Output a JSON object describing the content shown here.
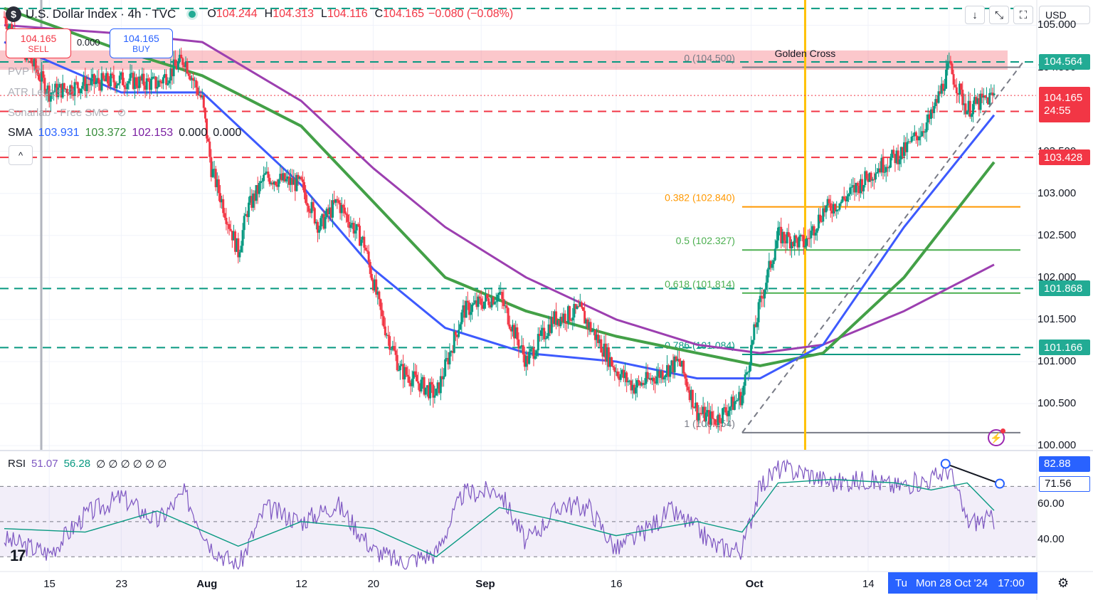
{
  "header": {
    "title": "U.S. Dollar Index · 4h · TVC",
    "logo_glyph": "$",
    "ohlc": [
      {
        "key": "O",
        "value": "104.244"
      },
      {
        "key": "H",
        "value": "104.313"
      },
      {
        "key": "L",
        "value": "104.116"
      },
      {
        "key": "C",
        "value": "104.165"
      }
    ],
    "change": "−0.080 (−0.08%)"
  },
  "toolbar": {
    "down_icon": "↓",
    "collapse_icon": "⤡",
    "fullscreen_icon": "⛶",
    "currency": "USD"
  },
  "trade": {
    "sell_price": "104.165",
    "sell_label": "SELL",
    "buy_price": "104.165",
    "buy_label": "BUY",
    "spread": "0.000"
  },
  "indicators": {
    "pvp": "PVP",
    "atr": "ATR Levels",
    "smc": "Sonarlab - Free SMC",
    "sma_label": "SMA",
    "sma_values": [
      {
        "v": "103.931",
        "color": "#2962ff"
      },
      {
        "v": "103.372",
        "color": "#388e3c"
      },
      {
        "v": "102.153",
        "color": "#7b1fa2"
      },
      {
        "v": "0.000",
        "color": "#131722"
      },
      {
        "v": "0.000",
        "color": "#131722"
      }
    ],
    "collapse_glyph": "^"
  },
  "price_axis": {
    "labels": [
      {
        "value": 105.0,
        "text": "105.000"
      },
      {
        "value": 104.5,
        "text": "104.500"
      },
      {
        "value": 103.5,
        "text": "103.500"
      },
      {
        "value": 103.0,
        "text": "103.000"
      },
      {
        "value": 102.5,
        "text": "102.500"
      },
      {
        "value": 102.0,
        "text": "102.000"
      },
      {
        "value": 101.5,
        "text": "101.500"
      },
      {
        "value": 101.0,
        "text": "101.000"
      },
      {
        "value": 100.5,
        "text": "100.500"
      },
      {
        "value": 100.0,
        "text": "100.000"
      }
    ],
    "tags": [
      {
        "value": 104.564,
        "text": "104.564",
        "color": "#22ab94"
      },
      {
        "value": 103.975,
        "text": "103.975",
        "color": "#f23645"
      },
      {
        "value": 103.428,
        "text": "103.428",
        "color": "#f23645"
      },
      {
        "value": 101.868,
        "text": "101.868",
        "color": "#22ab94"
      },
      {
        "value": 101.166,
        "text": "101.166",
        "color": "#22ab94"
      }
    ],
    "current": {
      "value": 104.165,
      "text": "104.165",
      "countdown": "24:55",
      "color": "#f23645"
    }
  },
  "rsi": {
    "label": "RSI",
    "value": "51.07",
    "ma_value": "56.28",
    "empty_glyph": "∅",
    "axis_labels": [
      {
        "value": 60,
        "text": "60.00"
      },
      {
        "value": 40,
        "text": "40.00"
      }
    ],
    "tags": [
      {
        "value": 82.88,
        "text": "82.88",
        "color": "#2962ff",
        "fill": true
      },
      {
        "value": 71.56,
        "text": "71.56",
        "color": "#2962ff",
        "fill": false
      }
    ]
  },
  "time_axis": {
    "labels": [
      {
        "text": "15",
        "bold": false
      },
      {
        "text": "23",
        "bold": false
      },
      {
        "text": "Aug",
        "bold": true
      },
      {
        "text": "12",
        "bold": false
      },
      {
        "text": "20",
        "bold": false
      },
      {
        "text": "Sep",
        "bold": true
      },
      {
        "text": "16",
        "bold": false
      },
      {
        "text": "Oct",
        "bold": true
      },
      {
        "text": "14",
        "bold": false
      }
    ],
    "current": {
      "prefix": "Tu",
      "date": "Mon 28 Oct '24",
      "time": "17:00"
    }
  },
  "chart_data": {
    "type": "candlestick",
    "symbol": "U.S. Dollar Index",
    "timeframe": "4h",
    "source": "TVC",
    "price_range": [
      99.95,
      105.3
    ],
    "close_path": [
      [
        "Jul 10",
        105.1
      ],
      [
        "Jul 15",
        104.2
      ],
      [
        "Jul 19",
        104.3
      ],
      [
        "Jul 23",
        104.35
      ],
      [
        "Jul 27",
        104.3
      ],
      [
        "Jul 30",
        104.6
      ],
      [
        "Aug 1",
        104.1
      ],
      [
        "Aug 2",
        103.3
      ],
      [
        "Aug 5",
        102.3
      ],
      [
        "Aug 6",
        102.8
      ],
      [
        "Aug 8",
        103.2
      ],
      [
        "Aug 12",
        103.1
      ],
      [
        "Aug 14",
        102.6
      ],
      [
        "Aug 16",
        102.9
      ],
      [
        "Aug 19",
        102.4
      ],
      [
        "Aug 21",
        101.5
      ],
      [
        "Aug 23",
        100.9
      ],
      [
        "Aug 27",
        100.6
      ],
      [
        "Aug 30",
        101.6
      ],
      [
        "Sep 3",
        101.8
      ],
      [
        "Sep 6",
        101.0
      ],
      [
        "Sep 9",
        101.5
      ],
      [
        "Sep 12",
        101.6
      ],
      [
        "Sep 16",
        100.9
      ],
      [
        "Sep 18",
        100.7
      ],
      [
        "Sep 20",
        100.8
      ],
      [
        "Sep 23",
        101.0
      ],
      [
        "Sep 25",
        100.4
      ],
      [
        "Sep 27",
        100.3
      ],
      [
        "Sep 30",
        100.6
      ],
      [
        "Oct 2",
        101.7
      ],
      [
        "Oct 4",
        102.5
      ],
      [
        "Oct 7",
        102.4
      ],
      [
        "Oct 9",
        102.8
      ],
      [
        "Oct 11",
        102.9
      ],
      [
        "Oct 15",
        103.3
      ],
      [
        "Oct 18",
        103.5
      ],
      [
        "Oct 21",
        103.9
      ],
      [
        "Oct 23",
        104.5
      ],
      [
        "Oct 25",
        104.0
      ],
      [
        "Oct 28",
        104.165
      ]
    ],
    "sma_50_path": [
      [
        "Jul 10",
        104.8
      ],
      [
        "Jul 23",
        104.2
      ],
      [
        "Aug 1",
        104.2
      ],
      [
        "Aug 12",
        103.1
      ],
      [
        "Aug 20",
        102.1
      ],
      [
        "Aug 28",
        101.4
      ],
      [
        "Sep 6",
        101.1
      ],
      [
        "Sep 16",
        101.0
      ],
      [
        "Sep 25",
        100.8
      ],
      [
        "Oct 2",
        100.8
      ],
      [
        "Oct 9",
        101.2
      ],
      [
        "Oct 18",
        102.6
      ],
      [
        "Oct 28",
        103.931
      ]
    ],
    "sma_100_path": [
      [
        "Jul 10",
        105.2
      ],
      [
        "Jul 23",
        104.7
      ],
      [
        "Aug 1",
        104.4
      ],
      [
        "Aug 12",
        103.8
      ],
      [
        "Aug 20",
        102.9
      ],
      [
        "Aug 28",
        102.0
      ],
      [
        "Sep 6",
        101.6
      ],
      [
        "Sep 16",
        101.3
      ],
      [
        "Sep 25",
        101.1
      ],
      [
        "Oct 2",
        100.95
      ],
      [
        "Oct 9",
        101.1
      ],
      [
        "Oct 18",
        102.0
      ],
      [
        "Oct 28",
        103.372
      ]
    ],
    "sma_200_path": [
      [
        "Jul 10",
        105.0
      ],
      [
        "Jul 23",
        104.9
      ],
      [
        "Aug 1",
        104.8
      ],
      [
        "Aug 12",
        104.1
      ],
      [
        "Aug 20",
        103.3
      ],
      [
        "Aug 28",
        102.6
      ],
      [
        "Sep 6",
        102.0
      ],
      [
        "Sep 16",
        101.5
      ],
      [
        "Sep 25",
        101.2
      ],
      [
        "Oct 2",
        101.1
      ],
      [
        "Oct 9",
        101.2
      ],
      [
        "Oct 18",
        101.6
      ],
      [
        "Oct 28",
        102.153
      ]
    ],
    "fibonacci": {
      "levels": [
        {
          "ratio": "0",
          "price": 104.5,
          "label": "0 (104.500)",
          "color": "#787b86"
        },
        {
          "ratio": "0.382",
          "price": 102.84,
          "label": "0.382 (102.840)",
          "color": "#ff9800"
        },
        {
          "ratio": "0.5",
          "price": 102.327,
          "label": "0.5 (102.327)",
          "color": "#4caf50"
        },
        {
          "ratio": "0.618",
          "price": 101.814,
          "label": "0.618 (101.814)",
          "color": "#4caf50"
        },
        {
          "ratio": "0.786",
          "price": 101.084,
          "label": "0.786 (101.084)",
          "color": "#089981"
        },
        {
          "ratio": "1",
          "price": 100.154,
          "label": "1 (100.154)",
          "color": "#787b86"
        }
      ]
    },
    "horizontal_levels": [
      {
        "price": 104.564,
        "style": "dashed",
        "color": "#089981"
      },
      {
        "price": 103.975,
        "style": "dashed",
        "color": "#f23645"
      },
      {
        "price": 103.428,
        "style": "dashed",
        "color": "#f23645"
      },
      {
        "price": 101.868,
        "style": "dashed",
        "color": "#089981"
      },
      {
        "price": 101.166,
        "style": "dashed",
        "color": "#089981"
      },
      {
        "price": 105.2,
        "style": "dashed",
        "color": "#089981"
      }
    ],
    "resistance_zone": [
      104.47,
      104.7
    ],
    "trendline": {
      "from": [
        "Sep 30",
        100.154
      ],
      "to": [
        "Oct 29",
        104.56
      ]
    },
    "annotation": {
      "text": "Golden Cross",
      "date": "Oct 7"
    },
    "rsi_range": [
      22,
      90
    ],
    "rsi_path": [
      [
        "Jul 10",
        40
      ],
      [
        "Jul 15",
        32
      ],
      [
        "Jul 19",
        54
      ],
      [
        "Jul 23",
        64
      ],
      [
        "Jul 27",
        50
      ],
      [
        "Jul 30",
        66
      ],
      [
        "Aug 2",
        36
      ],
      [
        "Aug 5",
        24
      ],
      [
        "Aug 8",
        58
      ],
      [
        "Aug 12",
        50
      ],
      [
        "Aug 16",
        60
      ],
      [
        "Aug 20",
        34
      ],
      [
        "Aug 23",
        27
      ],
      [
        "Aug 27",
        32
      ],
      [
        "Aug 30",
        66
      ],
      [
        "Sep 3",
        68
      ],
      [
        "Sep 6",
        38
      ],
      [
        "Sep 10",
        60
      ],
      [
        "Sep 13",
        58
      ],
      [
        "Sep 16",
        34
      ],
      [
        "Sep 19",
        44
      ],
      [
        "Sep 22",
        56
      ],
      [
        "Sep 25",
        46
      ],
      [
        "Sep 27",
        36
      ],
      [
        "Sep 30",
        34
      ],
      [
        "Oct 2",
        70
      ],
      [
        "Oct 4",
        80
      ],
      [
        "Oct 7",
        78
      ],
      [
        "Oct 10",
        72
      ],
      [
        "Oct 14",
        74
      ],
      [
        "Oct 17",
        70
      ],
      [
        "Oct 21",
        74
      ],
      [
        "Oct 23",
        80
      ],
      [
        "Oct 25",
        50
      ],
      [
        "Oct 28",
        51.07
      ]
    ],
    "rsi_ma_path": [
      [
        "Jul 10",
        46
      ],
      [
        "Jul 19",
        44
      ],
      [
        "Jul 27",
        56
      ],
      [
        "Aug 5",
        36
      ],
      [
        "Aug 12",
        50
      ],
      [
        "Aug 20",
        46
      ],
      [
        "Aug 27",
        30
      ],
      [
        "Sep 3",
        58
      ],
      [
        "Sep 10",
        50
      ],
      [
        "Sep 16",
        42
      ],
      [
        "Sep 25",
        50
      ],
      [
        "Sep 30",
        44
      ],
      [
        "Oct 4",
        72
      ],
      [
        "Oct 10",
        74
      ],
      [
        "Oct 17",
        72
      ],
      [
        "Oct 21",
        68
      ],
      [
        "Oct 25",
        72
      ],
      [
        "Oct 28",
        56.28
      ]
    ],
    "rsi_divergence": {
      "from": [
        "Oct 23",
        82.88
      ],
      "to": [
        "Oct 28",
        71.56
      ]
    }
  }
}
